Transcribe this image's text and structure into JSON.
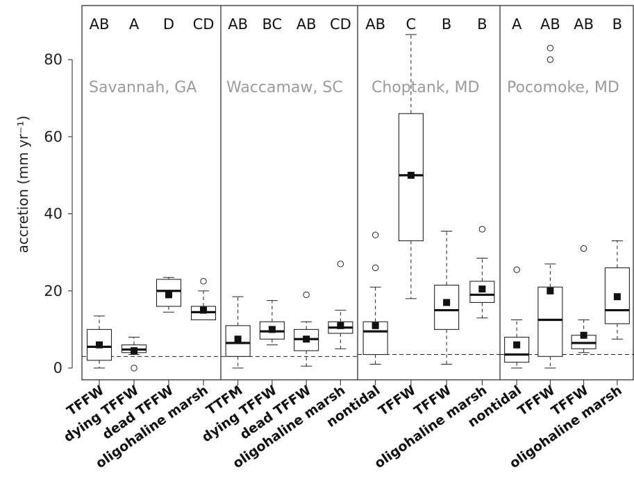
{
  "chart_data": {
    "type": "box",
    "ylabel": "accretion (mm yr⁻¹)",
    "yticks": [
      "0",
      "20",
      "40",
      "60",
      "80"
    ],
    "ylim": [
      -2,
      93
    ],
    "grid": false,
    "panels": [
      {
        "name": "Savannah, GA",
        "reference_line": 3,
        "categories": [
          {
            "label": "TFFW",
            "letter": "AB",
            "whisker_low": 0,
            "q1": 2,
            "median": 5.5,
            "q3": 10,
            "whisker_high": 13.5,
            "mean": 6,
            "outliers": []
          },
          {
            "label": "dying TFFW",
            "letter": "A",
            "whisker_low": 3.5,
            "q1": 4,
            "median": 4.8,
            "q3": 6,
            "whisker_high": 8,
            "mean": 4.5,
            "outliers": [
              0
            ]
          },
          {
            "label": "dead TFFW",
            "letter": "D",
            "whisker_low": 14.5,
            "q1": 16,
            "median": 20,
            "q3": 23,
            "whisker_high": 23.5,
            "mean": 19,
            "outliers": []
          },
          {
            "label": "oligohaline marsh",
            "letter": "CD",
            "whisker_low": 12.5,
            "q1": 12.5,
            "median": 14.5,
            "q3": 16,
            "whisker_high": 20,
            "mean": 15,
            "outliers": [
              22.5
            ]
          }
        ]
      },
      {
        "name": "Waccamaw, SC",
        "reference_line": 3,
        "categories": [
          {
            "label": "TTFM",
            "letter": "AB",
            "whisker_low": 0,
            "q1": 3,
            "median": 6.5,
            "q3": 11,
            "whisker_high": 18.5,
            "mean": 7.5,
            "outliers": []
          },
          {
            "label": "dying TFFW",
            "letter": "BC",
            "whisker_low": 6,
            "q1": 7.5,
            "median": 9.5,
            "q3": 12,
            "whisker_high": 17.5,
            "mean": 10,
            "outliers": []
          },
          {
            "label": "dead TFFW",
            "letter": "AB",
            "whisker_low": 0.5,
            "q1": 4.5,
            "median": 7.5,
            "q3": 10,
            "whisker_high": 12,
            "mean": 7.5,
            "outliers": [
              19
            ]
          },
          {
            "label": "oligohaline marsh",
            "letter": "CD",
            "whisker_low": 5,
            "q1": 9,
            "median": 10.5,
            "q3": 12,
            "whisker_high": 15,
            "mean": 11,
            "outliers": [
              27
            ]
          }
        ]
      },
      {
        "name": "Choptank, MD",
        "reference_line": 3.5,
        "categories": [
          {
            "label": "nontidal",
            "letter": "AB",
            "whisker_low": 1,
            "q1": 3.5,
            "median": 9.5,
            "q3": 12,
            "whisker_high": 21,
            "mean": 11,
            "outliers": [
              26,
              34.5
            ]
          },
          {
            "label": "TFFW",
            "letter": "C",
            "whisker_low": 18,
            "q1": 33,
            "median": 50,
            "q3": 66,
            "whisker_high": 86.5,
            "mean": 50,
            "outliers": []
          },
          {
            "label": "TFFW",
            "letter": "B",
            "whisker_low": 1,
            "q1": 10,
            "median": 15,
            "q3": 21.5,
            "whisker_high": 35.5,
            "mean": 17,
            "outliers": []
          },
          {
            "label": "oligohaline marsh",
            "letter": "B",
            "whisker_low": 13,
            "q1": 17,
            "median": 19,
            "q3": 22.5,
            "whisker_high": 28.5,
            "mean": 20.5,
            "outliers": [
              36
            ]
          }
        ]
      },
      {
        "name": "Pocomoke, MD",
        "reference_line": 3.5,
        "categories": [
          {
            "label": "nontidal",
            "letter": "A",
            "whisker_low": 0,
            "q1": 1.5,
            "median": 3.5,
            "q3": 8,
            "whisker_high": 12.5,
            "mean": 6,
            "outliers": [
              25.5
            ]
          },
          {
            "label": "TFFW",
            "letter": "AB",
            "whisker_low": 0,
            "q1": 3,
            "median": 12.5,
            "q3": 21,
            "whisker_high": 27,
            "mean": 20,
            "outliers": [
              80,
              83
            ]
          },
          {
            "label": "TFFW",
            "letter": "AB",
            "whisker_low": 4,
            "q1": 5,
            "median": 6.5,
            "q3": 8.5,
            "whisker_high": 12.5,
            "mean": 8.5,
            "outliers": [
              31
            ]
          },
          {
            "label": "oligohaline marsh",
            "letter": "B",
            "whisker_low": 7.5,
            "q1": 11.5,
            "median": 15,
            "q3": 26,
            "whisker_high": 33,
            "mean": 18.5,
            "outliers": []
          }
        ]
      }
    ]
  }
}
